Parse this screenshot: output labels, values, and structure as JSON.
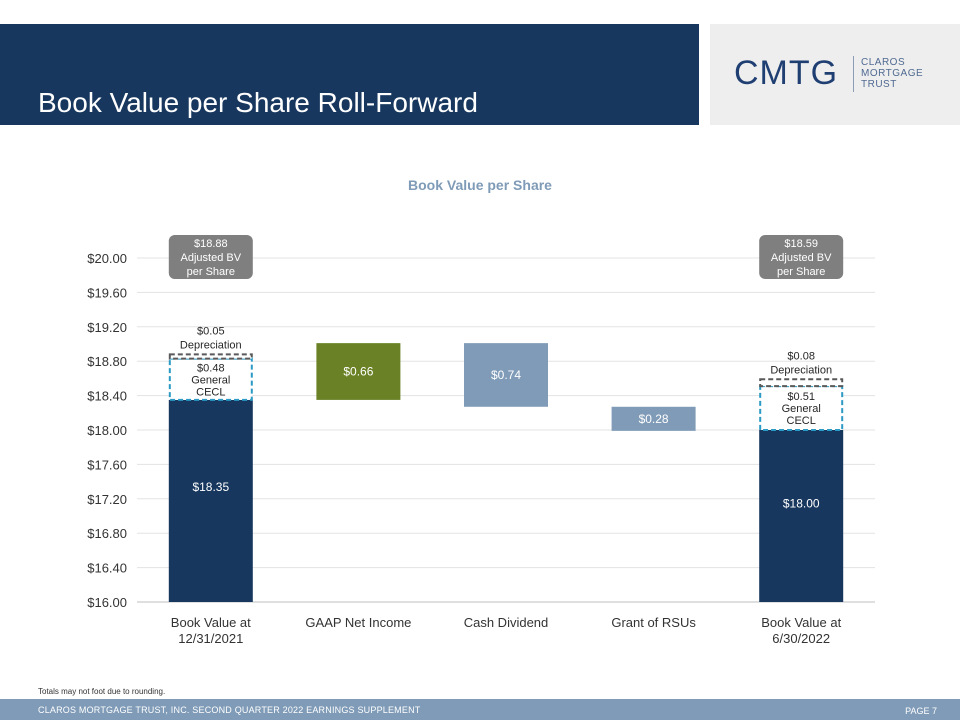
{
  "page": {
    "title": "Book Value per Share Roll-Forward",
    "logo_mark": "CMTG",
    "logo_lines": [
      "CLAROS",
      "MORTGAGE",
      "TRUST"
    ],
    "footnote": "Totals may not foot due to rounding.",
    "footer_text": "CLAROS MORTGAGE TRUST, INC. SECOND QUARTER 2022 EARNINGS SUPPLEMENT",
    "page_number": "PAGE 7"
  },
  "colors": {
    "header": "#17375e",
    "navy_bar": "#17375e",
    "green_bar": "#6a8125",
    "gray_blue_bar": "#7f9bb7",
    "callout": "#7f7f7f",
    "cecl_border": "#2b9ac4",
    "depreciation_border": "#595959",
    "footer": "#7f9bb7",
    "title_text": "#7f9bb7"
  },
  "chart_data": {
    "type": "bar",
    "subtype": "waterfall",
    "title": "Book Value per Share",
    "xlabel": "",
    "ylabel": "",
    "ylim": [
      16.0,
      20.0
    ],
    "y_ticks": [
      "$16.00",
      "$16.40",
      "$16.80",
      "$17.20",
      "$17.60",
      "$18.00",
      "$18.40",
      "$18.80",
      "$19.20",
      "$19.60",
      "$20.00"
    ],
    "grid": true,
    "legend": "none",
    "categories": [
      [
        "Book Value at",
        "12/31/2021"
      ],
      [
        "GAAP Net Income"
      ],
      [
        "Cash Dividend"
      ],
      [
        "Grant of RSUs"
      ],
      [
        "Book Value at",
        "6/30/2022"
      ]
    ],
    "bars": [
      {
        "category_index": 0,
        "kind": "total",
        "base": 16.0,
        "top": 18.35,
        "label": "$18.35",
        "color": "navy_bar"
      },
      {
        "category_index": 1,
        "kind": "increase",
        "base": 18.35,
        "top": 19.01,
        "label": "$0.66",
        "color": "green_bar"
      },
      {
        "category_index": 2,
        "kind": "decrease",
        "base": 18.27,
        "top": 19.01,
        "label": "$0.74",
        "color": "gray_blue_bar"
      },
      {
        "category_index": 3,
        "kind": "decrease",
        "base": 17.99,
        "top": 18.27,
        "label": "$0.28",
        "color": "gray_blue_bar"
      },
      {
        "category_index": 4,
        "kind": "total",
        "base": 16.0,
        "top": 18.0,
        "label": "$18.00",
        "color": "navy_bar"
      }
    ],
    "addbacks": [
      {
        "category_index": 0,
        "name": "CECL",
        "base": 18.35,
        "top": 18.83,
        "label": [
          "$0.48",
          "General",
          "CECL"
        ],
        "style": "dashed-cecl"
      },
      {
        "category_index": 0,
        "name": "Depreciation",
        "base": 18.83,
        "top": 18.88,
        "label": [
          "$0.05",
          "Depreciation"
        ],
        "style": "dashed-depreciation"
      },
      {
        "category_index": 4,
        "name": "CECL",
        "base": 18.0,
        "top": 18.51,
        "label": [
          "$0.51",
          "General",
          "CECL"
        ],
        "style": "dashed-cecl"
      },
      {
        "category_index": 4,
        "name": "Depreciation",
        "base": 18.51,
        "top": 18.59,
        "label": [
          "$0.08",
          "Depreciation"
        ],
        "style": "dashed-depreciation"
      }
    ],
    "callouts": [
      {
        "category_index": 0,
        "lines": [
          "$18.88",
          "Adjusted BV",
          "per Share"
        ]
      },
      {
        "category_index": 4,
        "lines": [
          "$18.59",
          "Adjusted BV",
          "per Share"
        ]
      }
    ]
  }
}
